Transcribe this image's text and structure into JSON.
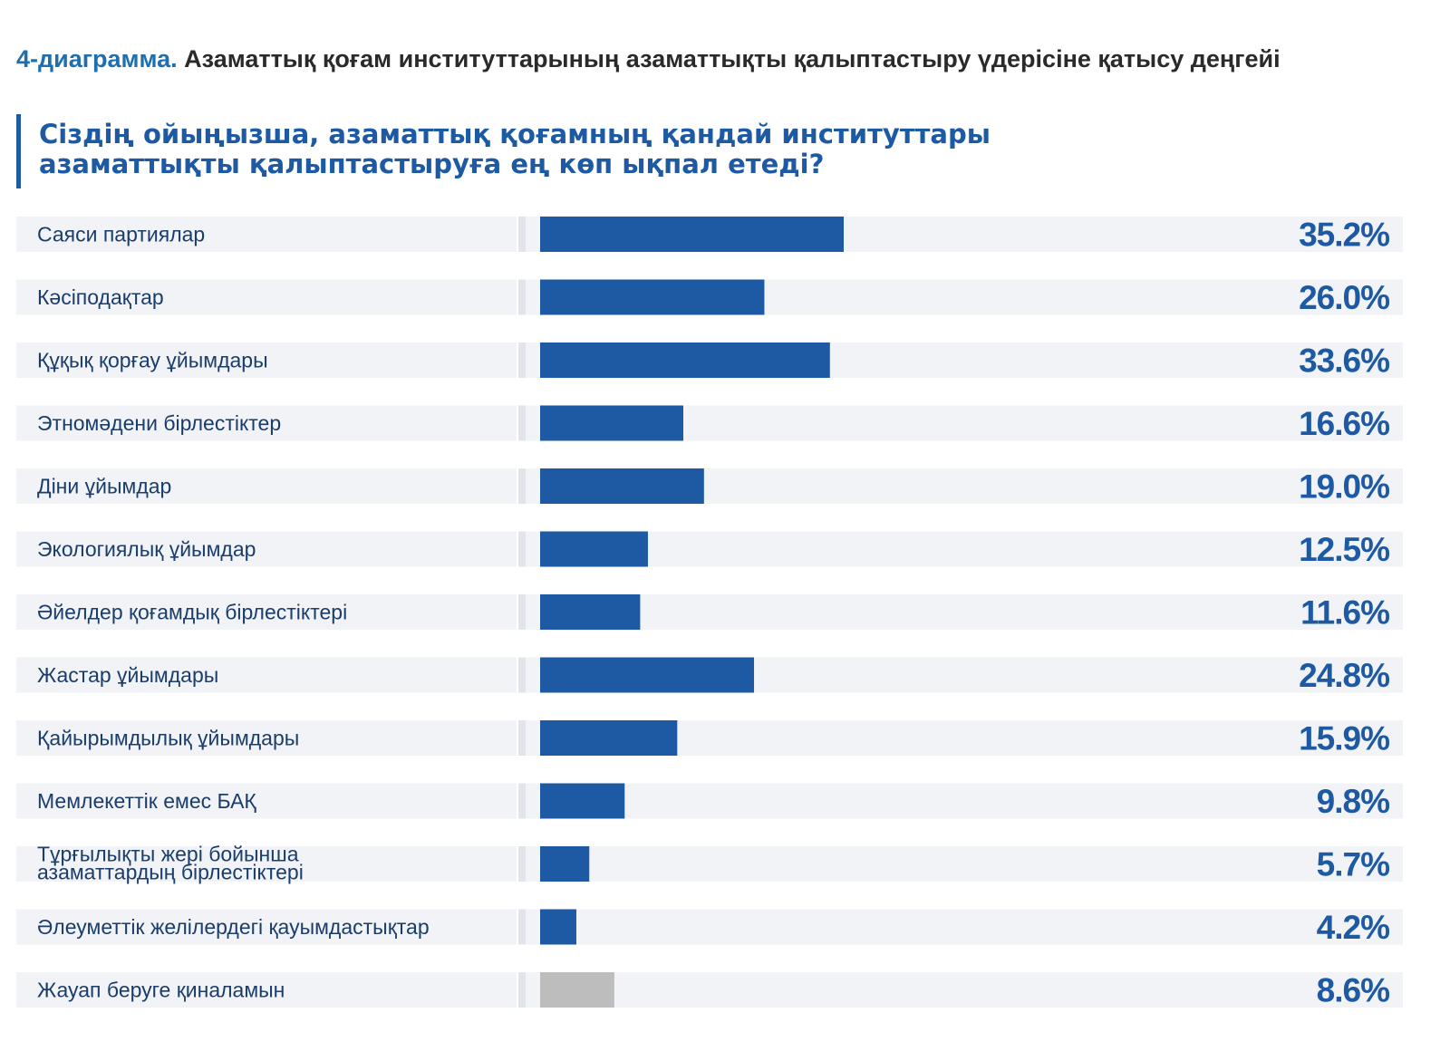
{
  "figure": {
    "number": "4-диаграмма.",
    "caption": "Азаматтық қоғам институттарының азаматтықты қалыптастыру үдерісіне қатысу деңгейі"
  },
  "question": {
    "line1": "Сіздің ойыңызша, азаматтық қоғамның қандай институттары",
    "line2": "азаматтықты қалыптастыруға ең көп ықпал етеді?"
  },
  "colors": {
    "bar": "#1d5aa3",
    "bar_muted": "#bdbdbd",
    "value_muted": "#bdbdbd",
    "row_bg": "#f1f3f7",
    "divider": "#e1e4ea"
  },
  "chart_data": {
    "type": "bar",
    "orientation": "horizontal",
    "title": "Сіздің ойыңызша, азаматтық қоғамның қандай институттары азаматтықты қалыптастыруға ең көп ықпал етеді?",
    "categories": [
      "Саяси партиялар",
      "Кәсіподақтар",
      "Құқық қорғау ұйымдары",
      "Этномәдени бірлестіктер",
      "Діни ұйымдар",
      "Экологиялық ұйымдар",
      "Әйелдер қоғамдық бірлестіктері",
      "Жастар ұйымдары",
      "Қайырымдылық ұйымдары",
      "Мемлекеттік емес БАҚ",
      "Тұрғылықты жері бойынша\nазаматтардың бірлестіктері",
      "Әлеуметтік желілердегі қауымдастықтар",
      "Жауап беруге қиналамын"
    ],
    "values": [
      35.2,
      26.0,
      33.6,
      16.6,
      19.0,
      12.5,
      11.6,
      24.8,
      15.9,
      9.8,
      5.7,
      4.2,
      8.6
    ],
    "value_labels": [
      "35.2%",
      "26.0%",
      "33.6%",
      "16.6%",
      "19.0%",
      "12.5%",
      "11.6%",
      "24.8%",
      "15.9%",
      "9.8%",
      "5.7%",
      "4.2%",
      "8.6%"
    ],
    "muted": [
      false,
      false,
      false,
      false,
      false,
      false,
      false,
      false,
      false,
      false,
      false,
      false,
      true
    ],
    "xlim": [
      0,
      100
    ],
    "grid": false,
    "legend": "none"
  }
}
